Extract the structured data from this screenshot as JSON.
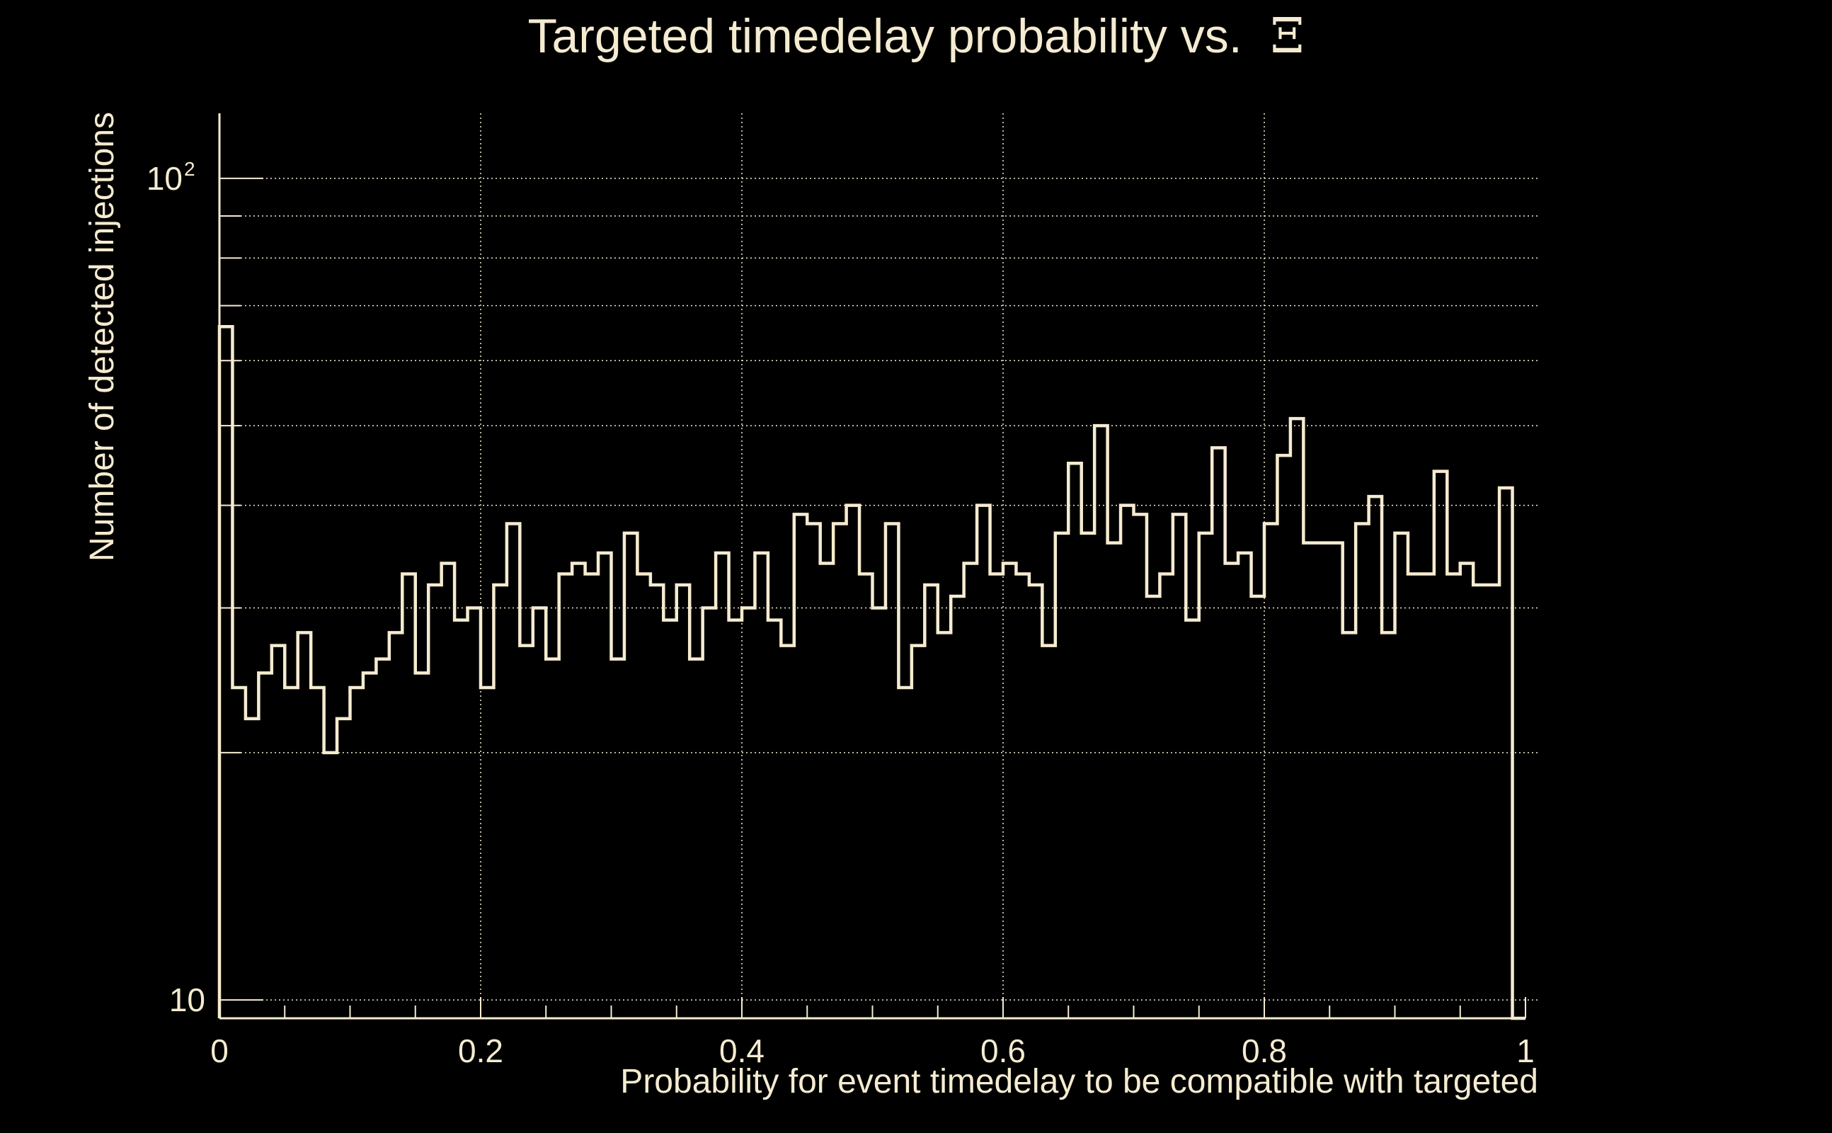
{
  "colors": {
    "background": "#000000",
    "foreground": "#f5ebd0",
    "grid": "#f5ebd0"
  },
  "chart_data": {
    "type": "histogram",
    "title": "Targeted timedelay probability vs.",
    "title_symbol": "Ξ",
    "xlabel": "Probability for event timedelay to be compatible with targeted",
    "ylabel": "Number of detected injections",
    "xlim": [
      0,
      1
    ],
    "ylim": [
      9.5,
      120
    ],
    "y_scale": "log",
    "grid": true,
    "x_ticks": [
      {
        "value": 0,
        "label": "0"
      },
      {
        "value": 0.2,
        "label": "0.2"
      },
      {
        "value": 0.4,
        "label": "0.4"
      },
      {
        "value": 0.6,
        "label": "0.6"
      },
      {
        "value": 0.8,
        "label": "0.8"
      },
      {
        "value": 1,
        "label": "1"
      }
    ],
    "y_ticks": [
      {
        "value": 10,
        "label": "10",
        "exponent": ""
      },
      {
        "value": 100,
        "label": "10",
        "exponent": "2"
      }
    ],
    "bin_width": 0.01,
    "values": [
      66,
      24,
      22,
      25,
      27,
      24,
      28,
      24,
      20,
      22,
      24,
      25,
      26,
      28,
      33,
      25,
      32,
      34,
      29,
      30,
      24,
      32,
      38,
      27,
      30,
      26,
      33,
      34,
      33,
      35,
      26,
      37,
      33,
      32,
      29,
      32,
      26,
      30,
      35,
      29,
      30,
      35,
      29,
      27,
      39,
      38,
      34,
      38,
      40,
      33,
      30,
      38,
      24,
      27,
      32,
      28,
      31,
      34,
      40,
      33,
      34,
      33,
      32,
      27,
      37,
      45,
      37,
      50,
      36,
      40,
      39,
      31,
      33,
      39,
      29,
      37,
      47,
      34,
      35,
      31,
      38,
      46,
      51,
      36,
      36,
      36,
      28,
      38,
      41,
      28,
      37,
      33,
      33,
      44,
      33,
      34,
      32,
      32,
      42,
      9
    ]
  }
}
